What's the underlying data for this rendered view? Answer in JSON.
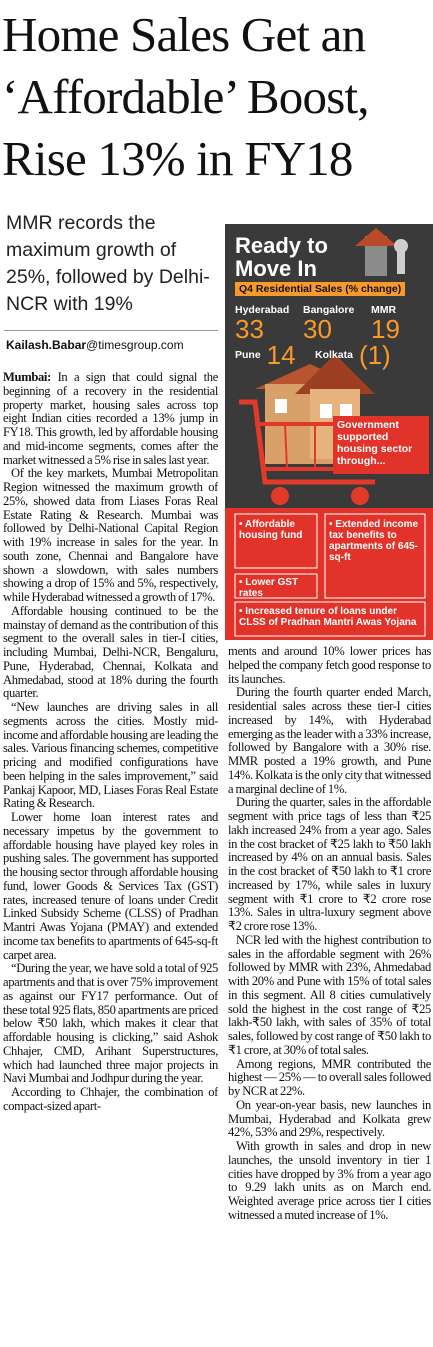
{
  "headline": {
    "lines": [
      "Home Sales Get an",
      "‘Affordable’ Boost,",
      "Rise 13% in FY18"
    ]
  },
  "deck": "MMR records the maximum growth of 25%, followed by Delhi-NCR with 19%",
  "byline": {
    "name": "Kailash.Babar",
    "email": "@timesgroup.com"
  },
  "infographic": {
    "title_lines": [
      "Ready to",
      "Move In"
    ],
    "subtitle": "Q4 Residential Sales (% change)",
    "stats": [
      {
        "city": "Hyderabad",
        "value": "33"
      },
      {
        "city": "Bangalore",
        "value": "30"
      },
      {
        "city": "MMR",
        "value": "19"
      },
      {
        "city": "Pune",
        "value": "14"
      },
      {
        "city": "Kolkata",
        "value": "(1)"
      }
    ],
    "callout": "Government supported housing sector through...",
    "bullets": [
      "Affordable housing fund",
      "Extended income tax benefits to apartments of 645-sq-ft",
      "Lower GST rates",
      "Increased tenure of loans under CLSS of Pradhan Mantri Awas Yojana"
    ]
  },
  "article": {
    "dateline": "Mumbai:",
    "left_paragraphs": [
      "In a sign that could signal the beginning of a recovery in the residential property market, housing sales across top eight Indian cities recorded a 13% jump in FY18. This growth, led by affordable housing and mid-income segments, comes after the market witnessed a 5% rise in sales last year.",
      "Of the key markets, Mumbai Metropolitan Region witnessed the maximum growth of 25%, showed data from Liases Foras Real Estate Rating & Research. Mumbai was followed by Delhi-National Capital Region with 19% increase in sales for the year. In south zone, Chennai and Bangalore have shown a slowdown, with sales numbers showing a drop of 15% and 5%, respectively, while Hyderabad witnessed a growth of 17%.",
      "Affordable housing continued to be the mainstay of demand as the contribution of this segment to the overall sales in tier-I cities, including Mumbai, Delhi-NCR, Bengaluru, Pune, Hyderabad, Chennai, Kolkata and Ahmedabad, stood at 18% during the fourth quarter.",
      "“New launches are driving sales in all segments across the cities. Mostly mid-income and affordable housing are leading the sales. Various financing schemes, competitive pricing and modified configurations have been helping in the sales improvement,” said Pankaj Kapoor, MD, Liases Foras Real Estate Rating & Research.",
      "Lower home loan interest rates and necessary impetus by the government to affordable housing have played key roles in pushing sales. The government has supported the housing sector through affordable housing fund, lower Goods & Services Tax (GST) rates, increased tenure of loans under Credit Linked Subsidy Scheme (CLSS) of Pradhan Mantri Awas Yojana (PMAY) and extended income tax benefits to apartments of 645-sq-ft carpet area.",
      "“During the year, we have sold a total of 925 apartments and that is over 75% improvement as against our FY17 performance. Out of these total 925 flats, 850 apartments are priced below ₹50 lakh, which makes it clear that affordable housing is clicking,” said Ashok Chhajer, CMD, Arihant Superstructures, which had launched three major projects in Navi Mumbai and Jodhpur during the year.",
      "According to Chhajer, the combination of compact-sized apart-"
    ],
    "right_paragraphs": [
      "ments and around 10% lower prices has helped the company fetch good response to its launches.",
      "During the fourth quarter ended March, residential sales across these tier-I cities increased by 14%, with Hyderabad emerging as the leader with a 33% increase, followed by Bangalore with a 30% rise. MMR posted a 19% growth, and Pune 14%. Kolkata is the only city that witnessed a marginal decline of 1%.",
      "During the quarter, sales in the affordable segment with price tags of less than ₹25 lakh increased 24% from a year ago. Sales in the cost bracket of ₹25 lakh to ₹50 lakh increased by 4% on an annual basis. Sales in the cost bracket of ₹50 lakh to ₹1 crore increased by 17%, while sales in luxury segment with ₹1 crore to ₹2 crore rose 13%. Sales in ultra-luxury segment above ₹2 crore rose 13%.",
      "NCR led with the highest contribution to sales in the affordable segment with 26% followed by MMR with 23%, Ahmedabad with 20% and Pune with 15% of total sales in this segment. All 8 cities cumulatively sold the highest in the cost range of ₹25 lakh-₹50 lakh, with sales of 35% of total sales, followed by cost range of ₹50 lakh to ₹1 crore, at 30% of total sales.",
      "Among regions, MMR contributed the highest — 25% — to overall sales followed by NCR at 22%.",
      "On year-on-year basis, new launches in Mumbai, Hyderabad and Kolkata grew 42%, 53% and 29%, respectively.",
      "With growth in sales and drop in new launches, the unsold inventory in tier 1 cities have dropped by 3% from a year ago to 9.29 lakh units as on March end. Weighted average price across tier I cities witnessed a muted increase of 1%."
    ]
  }
}
